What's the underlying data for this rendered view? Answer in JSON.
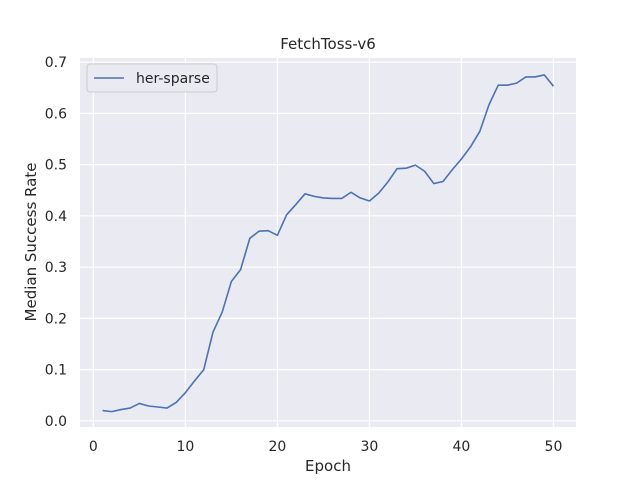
{
  "chart_data": {
    "type": "line",
    "title": "FetchToss-v6",
    "xlabel": "Epoch",
    "ylabel": "Median Success Rate",
    "xlim": [
      -1.45,
      52.45
    ],
    "ylim": [
      -0.012,
      0.708
    ],
    "xticks": [
      0,
      10,
      20,
      30,
      40,
      50
    ],
    "yticks": [
      0.0,
      0.1,
      0.2,
      0.3,
      0.4,
      0.5,
      0.6,
      0.7
    ],
    "xtick_labels": [
      "0",
      "10",
      "20",
      "30",
      "40",
      "50"
    ],
    "ytick_labels": [
      "0.0",
      "0.1",
      "0.2",
      "0.3",
      "0.4",
      "0.5",
      "0.6",
      "0.7"
    ],
    "grid": true,
    "legend_position": "top-left",
    "background_color": "#eaeaf2",
    "grid_color": "#ffffff",
    "series": [
      {
        "name": "her-sparse",
        "color": "#4c72b0",
        "x": [
          1,
          2,
          3,
          4,
          5,
          6,
          7,
          8,
          9,
          10,
          11,
          12,
          13,
          14,
          15,
          16,
          17,
          18,
          19,
          20,
          21,
          22,
          23,
          24,
          25,
          26,
          27,
          28,
          29,
          30,
          31,
          32,
          33,
          34,
          35,
          36,
          37,
          38,
          39,
          40,
          41,
          42,
          43,
          44,
          45,
          46,
          47,
          48,
          49,
          50
        ],
        "y": [
          0.02,
          0.018,
          0.022,
          0.025,
          0.034,
          0.029,
          0.027,
          0.025,
          0.036,
          0.055,
          0.078,
          0.1,
          0.173,
          0.212,
          0.272,
          0.295,
          0.356,
          0.37,
          0.371,
          0.362,
          0.402,
          0.422,
          0.443,
          0.438,
          0.435,
          0.434,
          0.434,
          0.446,
          0.435,
          0.429,
          0.444,
          0.466,
          0.492,
          0.493,
          0.499,
          0.487,
          0.463,
          0.467,
          0.49,
          0.511,
          0.535,
          0.565,
          0.617,
          0.655,
          0.655,
          0.659,
          0.671,
          0.671,
          0.675,
          0.653
        ]
      }
    ]
  }
}
